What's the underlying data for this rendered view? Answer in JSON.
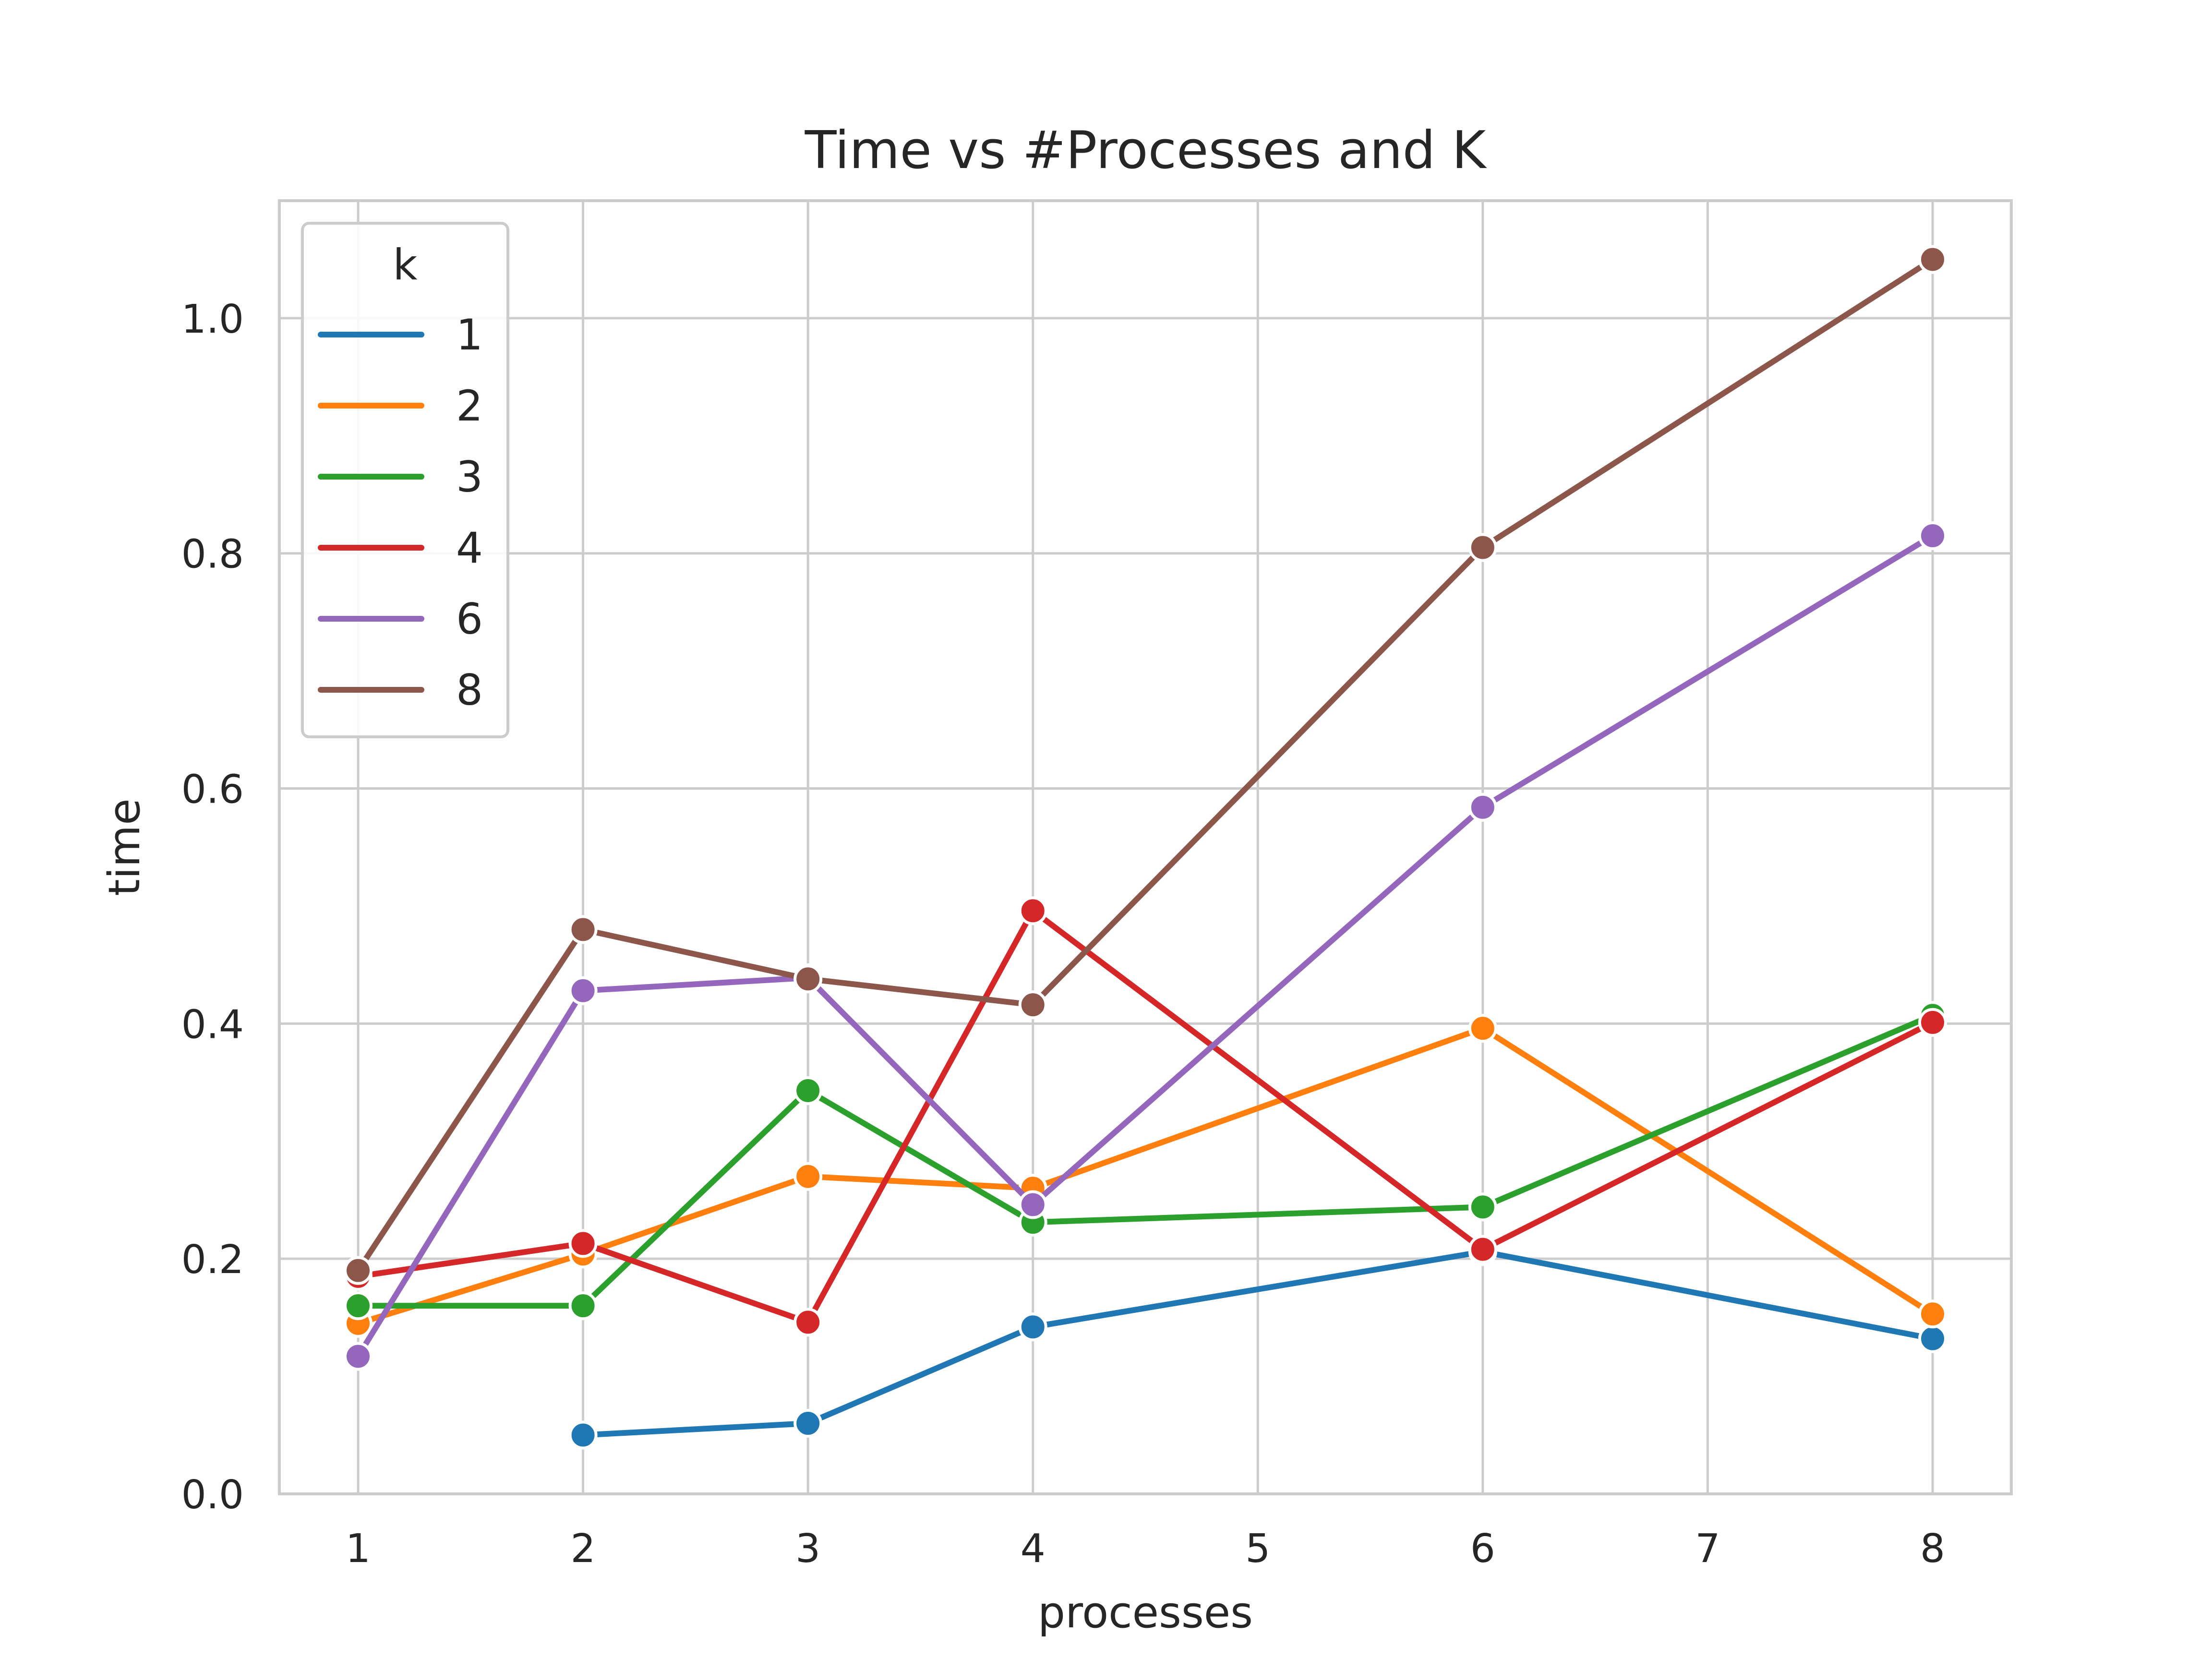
{
  "chart_data": {
    "type": "line",
    "title": "Time vs #Processes and K",
    "xlabel": "processes",
    "ylabel": "time",
    "xlim": [
      0.65,
      8.35
    ],
    "ylim": [
      0.0,
      1.1
    ],
    "xticks": [
      1,
      2,
      3,
      4,
      5,
      6,
      7,
      8
    ],
    "yticks": [
      0.0,
      0.2,
      0.4,
      0.6,
      0.8,
      1.0
    ],
    "ytick_labels": [
      "0.0",
      "0.2",
      "0.4",
      "0.6",
      "0.8",
      "1.0"
    ],
    "grid": true,
    "legend": {
      "title": "k",
      "placement": "top-left"
    },
    "series": [
      {
        "name": "1",
        "color": "#1f77b4",
        "x": [
          2,
          3,
          4,
          6,
          8
        ],
        "y": [
          0.05,
          0.06,
          0.142,
          0.206,
          0.132
        ]
      },
      {
        "name": "2",
        "color": "#ff7f0e",
        "x": [
          1,
          2,
          3,
          4,
          6,
          8
        ],
        "y": [
          0.145,
          0.204,
          0.27,
          0.26,
          0.396,
          0.153
        ]
      },
      {
        "name": "3",
        "color": "#2ca02c",
        "x": [
          1,
          2,
          3,
          4,
          6,
          8
        ],
        "y": [
          0.16,
          0.16,
          0.343,
          0.231,
          0.244,
          0.407
        ]
      },
      {
        "name": "4",
        "color": "#d62728",
        "x": [
          1,
          2,
          3,
          4,
          6,
          8
        ],
        "y": [
          0.185,
          0.213,
          0.146,
          0.496,
          0.208,
          0.401
        ]
      },
      {
        "name": "6",
        "color": "#9467bd",
        "x": [
          1,
          2,
          3,
          4,
          6,
          8
        ],
        "y": [
          0.117,
          0.428,
          0.439,
          0.246,
          0.584,
          0.815
        ]
      },
      {
        "name": "8",
        "color": "#8c564b",
        "x": [
          1,
          2,
          3,
          4,
          6,
          8
        ],
        "y": [
          0.19,
          0.48,
          0.438,
          0.416,
          0.805,
          1.05
        ]
      }
    ]
  }
}
